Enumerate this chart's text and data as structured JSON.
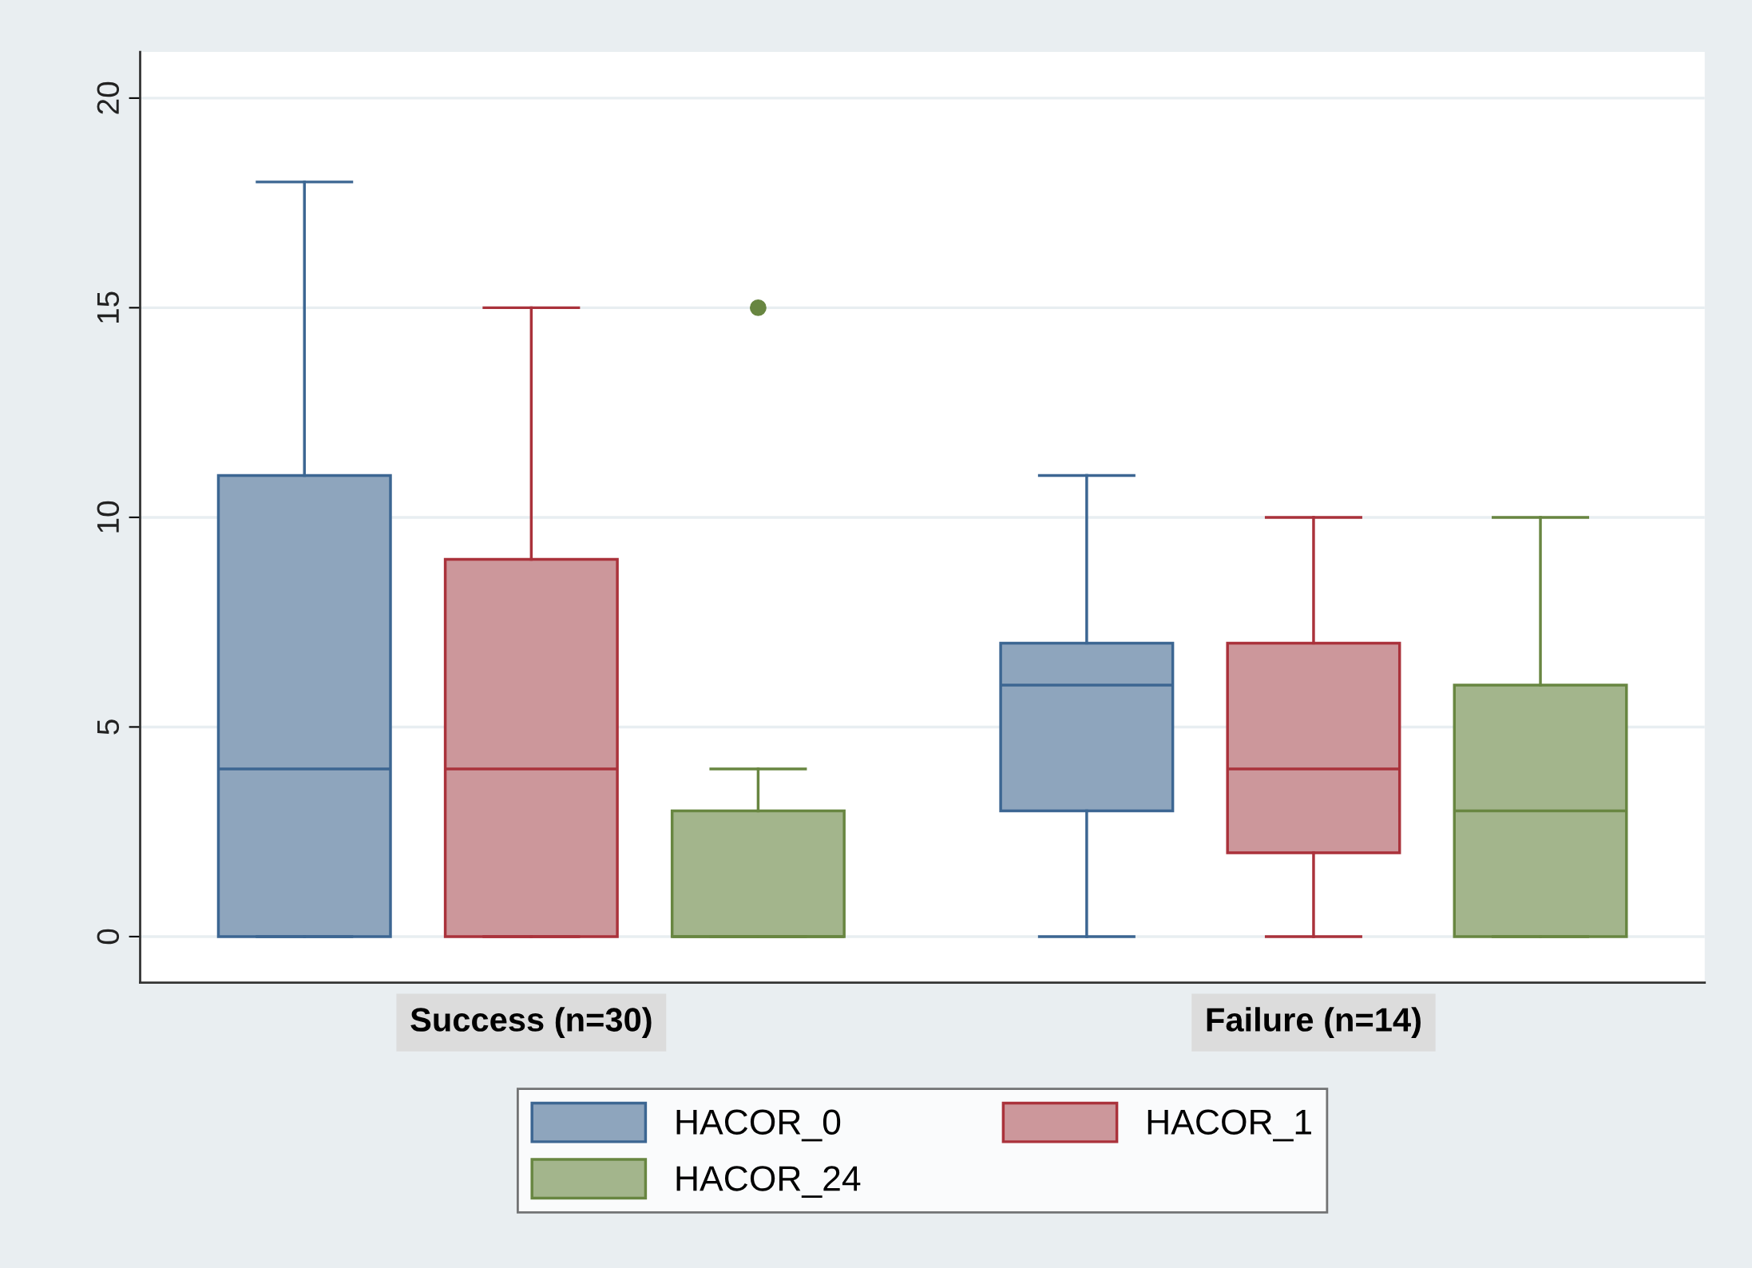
{
  "chart_data": {
    "type": "box",
    "categories": [
      "Success (n=30)",
      "Failure (n=14)"
    ],
    "series": [
      {
        "name": "HACOR_0",
        "color": "#8ea5bd",
        "boxes": [
          {
            "low": 0,
            "q1": 0,
            "median": 4,
            "q3": 11,
            "high": 18
          },
          {
            "low": 0,
            "q1": 3,
            "median": 6,
            "q3": 7,
            "high": 11
          }
        ]
      },
      {
        "name": "HACOR_1",
        "color": "#cc979b",
        "boxes": [
          {
            "low": 0,
            "q1": 0,
            "median": 4,
            "q3": 9,
            "high": 15
          },
          {
            "low": 0,
            "q1": 2,
            "median": 4,
            "q3": 7,
            "high": 10
          }
        ]
      },
      {
        "name": "HACOR_24",
        "color": "#a3b58c",
        "boxes": [
          {
            "low": 0,
            "q1": 0,
            "median": 0,
            "q3": 3,
            "high": 4,
            "outliers": [
              15
            ]
          },
          {
            "low": 0,
            "q1": 0,
            "median": 3,
            "q3": 6,
            "high": 10
          }
        ]
      }
    ],
    "ylim": [
      -1.1,
      21.1
    ],
    "yticks": [
      0,
      5,
      10,
      15,
      20
    ],
    "grid": "y",
    "legend": "bottom"
  }
}
